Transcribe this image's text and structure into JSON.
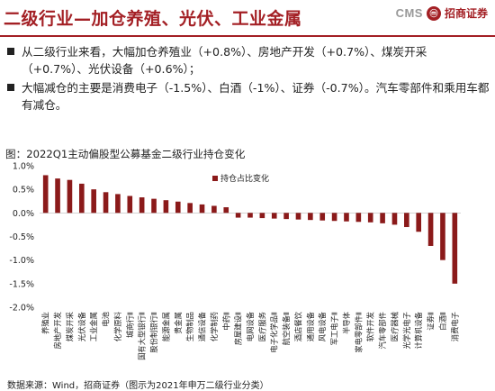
{
  "header": {
    "title": "二级行业—加仓养殖、光伏、工业金属",
    "logo_text": "CMS",
    "logo_badge": "ⓜ",
    "logo_cn": "招商证券"
  },
  "bullets": [
    "从二级行业来看，大幅加仓养殖业（+0.8%）、房地产开发（+0.7%）、煤炭开采（+0.7%）、光伏设备（+0.6%）；",
    "大幅减仓的主要是消费电子（-1.5%）、白酒（-1%）、证券（-0.7%）。汽车零部件和乘用车都有减仓。"
  ],
  "chart_caption": "图：2022Q1主动偏股型公募基金二级行业持仓变化",
  "source": "数据来源：Wind，招商证券（图示为2021年申万二级行业分类）",
  "colors": {
    "accent": "#a31f24",
    "bar": "#8b1a1a"
  },
  "chart_data": {
    "type": "bar",
    "legend": "持仓占比变化",
    "legend_position": "top-left",
    "yticks": [
      "1.0%",
      "0.5%",
      "0.0%",
      "-0.5%",
      "-1.0%",
      "-1.5%",
      "-2.0%"
    ],
    "ylim": [
      -2.0,
      1.0
    ],
    "categories": [
      "养殖业",
      "房地产开发",
      "煤炭开采",
      "光伏设备",
      "工业金属",
      "电池",
      "化学原料",
      "城商行Ⅱ",
      "国有大型银行Ⅱ",
      "股份制银行Ⅱ",
      "能源金属",
      "贵金属",
      "生物制品",
      "通信设备",
      "化学制药",
      "中药Ⅱ",
      "房屋建设Ⅱ",
      "电网设备",
      "医疗服务",
      "电子化学品Ⅱ",
      "航空装备Ⅱ",
      "酒店餐饮",
      "通用设备",
      "风电设备",
      "军工电子Ⅱ",
      "半导体",
      "家电零部件Ⅱ",
      "软件开发",
      "汽车零部件",
      "医疗器械",
      "光学光电子",
      "计算机设备",
      "证券Ⅱ",
      "白酒Ⅱ",
      "消费电子"
    ],
    "values": [
      0.8,
      0.73,
      0.7,
      0.62,
      0.5,
      0.44,
      0.4,
      0.36,
      0.33,
      0.3,
      0.27,
      0.24,
      0.21,
      0.18,
      0.15,
      0.12,
      -0.1,
      -0.1,
      -0.11,
      -0.12,
      -0.13,
      -0.14,
      -0.15,
      -0.16,
      -0.17,
      -0.18,
      -0.19,
      -0.2,
      -0.22,
      -0.25,
      -0.3,
      -0.4,
      -0.7,
      -1.0,
      -1.5
    ]
  }
}
